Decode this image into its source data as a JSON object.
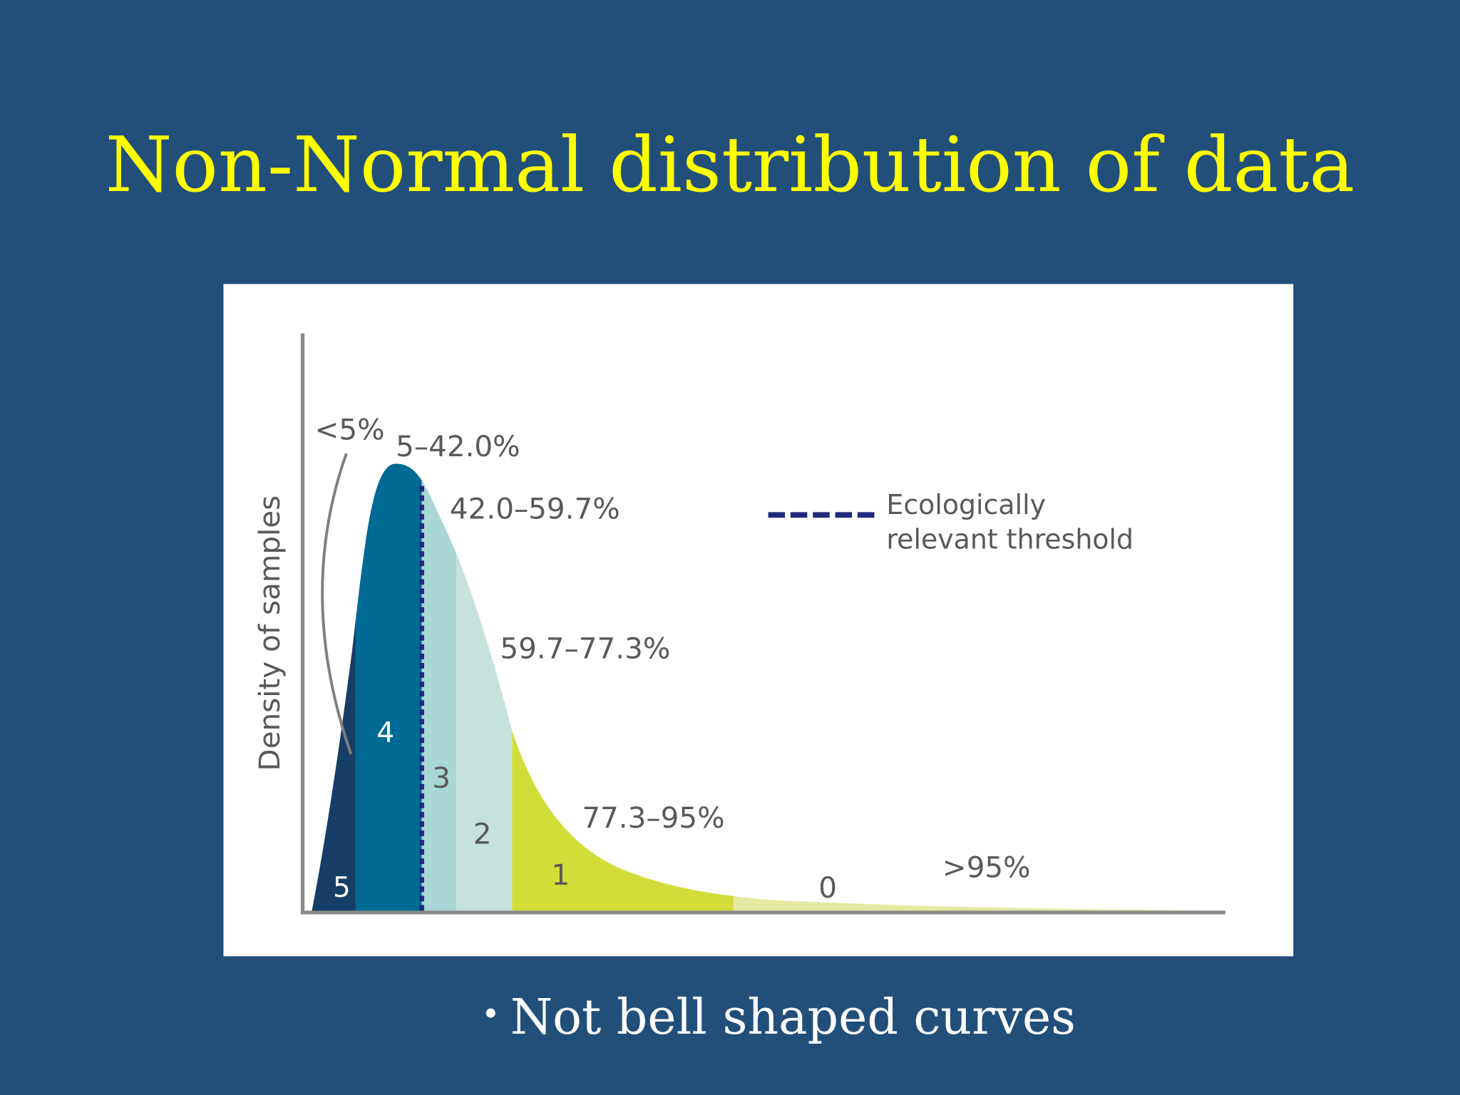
{
  "title": "Non-Normal distribution of data",
  "figure": {
    "y_axis_label": "Density of samples",
    "range_labels": [
      "<5%",
      "5–42.0%",
      "42.0–59.7%",
      "59.7–77.3%",
      "77.3–95%",
      ">95%"
    ],
    "region_labels": [
      "5",
      "4",
      "3",
      "2",
      "1",
      "0"
    ],
    "legend": [
      "Ecologically",
      "relevant threshold"
    ]
  },
  "bullets": [
    "Not bell shaped curves"
  ]
}
